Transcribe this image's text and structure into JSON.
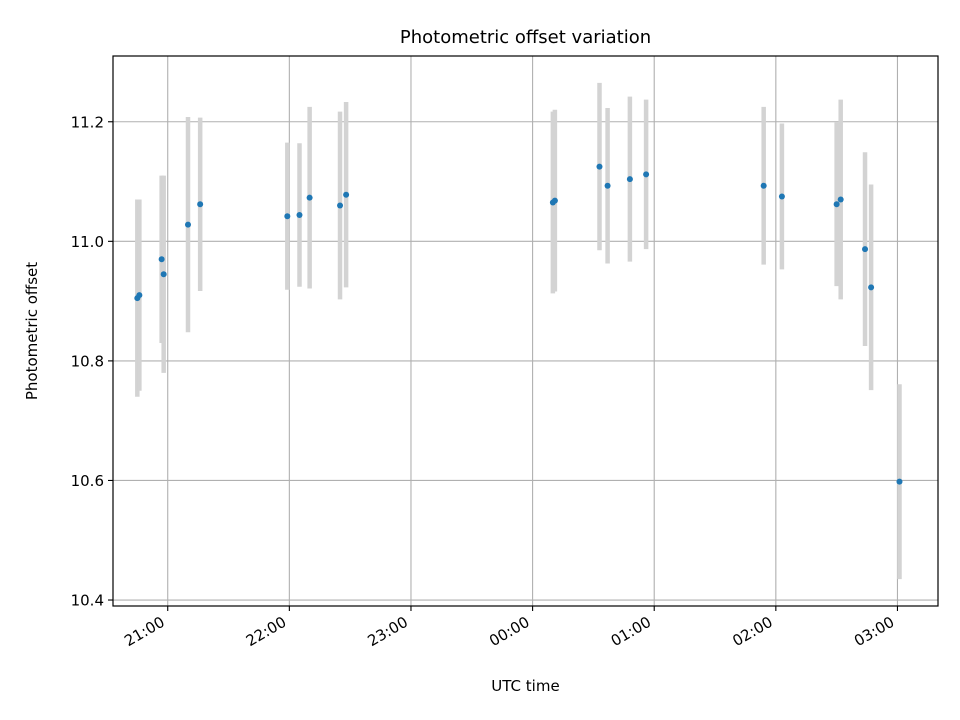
{
  "chart_data": {
    "type": "scatter",
    "title": "Photometric offset variation",
    "xlabel": "UTC time",
    "ylabel": "Photometric offset",
    "xlim": [
      "20:33",
      "03:20"
    ],
    "ylim": [
      10.39,
      11.31
    ],
    "x_day_offset_after_midnight": true,
    "xticks": [
      "21:00",
      "22:00",
      "23:00",
      "00:00",
      "01:00",
      "02:00",
      "03:00"
    ],
    "yticks": [
      "10.4",
      "10.6",
      "10.8",
      "11.0",
      "11.2"
    ],
    "grid": true,
    "colors": {
      "point": "#1f77b4",
      "errorbar": "#d3d3d3",
      "grid": "#b0b0b0"
    },
    "points": [
      {
        "t": "20:45",
        "y": 10.905,
        "err": 0.165
      },
      {
        "t": "20:46",
        "y": 10.91,
        "err": 0.16
      },
      {
        "t": "20:57",
        "y": 10.97,
        "err": 0.14
      },
      {
        "t": "20:58",
        "y": 10.945,
        "err": 0.165
      },
      {
        "t": "21:10",
        "y": 11.028,
        "err": 0.18
      },
      {
        "t": "21:16",
        "y": 11.062,
        "err": 0.145
      },
      {
        "t": "21:59",
        "y": 11.042,
        "err": 0.123
      },
      {
        "t": "22:05",
        "y": 11.044,
        "err": 0.12
      },
      {
        "t": "22:10",
        "y": 11.073,
        "err": 0.152
      },
      {
        "t": "22:25",
        "y": 11.06,
        "err": 0.157
      },
      {
        "t": "22:28",
        "y": 11.078,
        "err": 0.155
      },
      {
        "t": "00:10",
        "y": 11.065,
        "err": 0.152
      },
      {
        "t": "00:11",
        "y": 11.068,
        "err": 0.152
      },
      {
        "t": "00:33",
        "y": 11.125,
        "err": 0.14
      },
      {
        "t": "00:37",
        "y": 11.093,
        "err": 0.13
      },
      {
        "t": "00:48",
        "y": 11.104,
        "err": 0.138
      },
      {
        "t": "00:56",
        "y": 11.112,
        "err": 0.125
      },
      {
        "t": "01:54",
        "y": 11.093,
        "err": 0.132
      },
      {
        "t": "02:03",
        "y": 11.075,
        "err": 0.122
      },
      {
        "t": "02:30",
        "y": 11.062,
        "err": 0.137
      },
      {
        "t": "02:32",
        "y": 11.07,
        "err": 0.167
      },
      {
        "t": "02:44",
        "y": 10.987,
        "err": 0.162
      },
      {
        "t": "02:47",
        "y": 10.923,
        "err": 0.172
      },
      {
        "t": "03:01",
        "y": 10.598,
        "err": 0.163
      }
    ]
  }
}
